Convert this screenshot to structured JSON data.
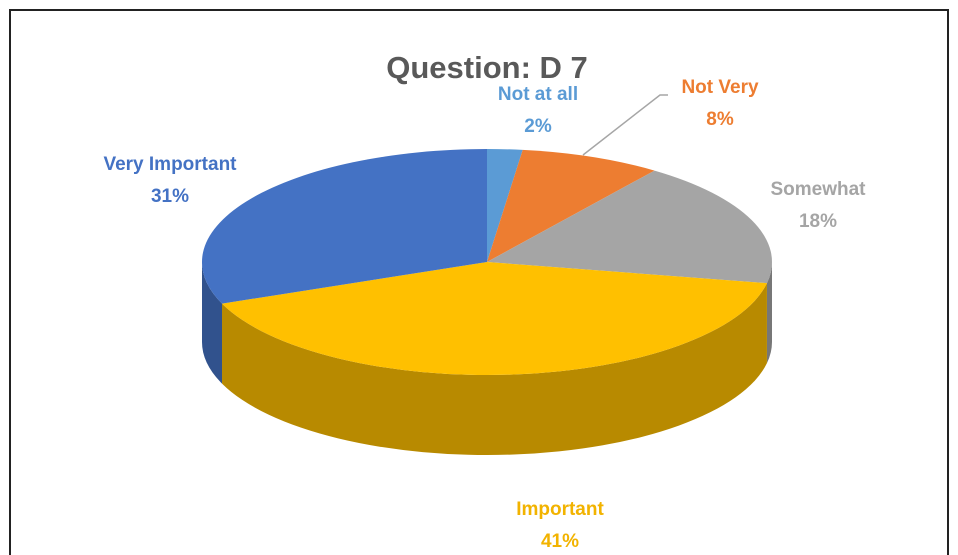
{
  "chart_data": {
    "type": "pie",
    "title": "Question: D 7",
    "categories": [
      "Not at all",
      "Not Very",
      "Somewhat",
      "Important",
      "Very Important"
    ],
    "values": [
      2,
      8,
      18,
      41,
      31
    ],
    "value_labels": [
      "2%",
      "8%",
      "18%",
      "41%",
      "31%"
    ],
    "colors": [
      "#5b9bd5",
      "#ed7d31",
      "#a5a5a5",
      "#ffc000",
      "#4472c4"
    ]
  }
}
